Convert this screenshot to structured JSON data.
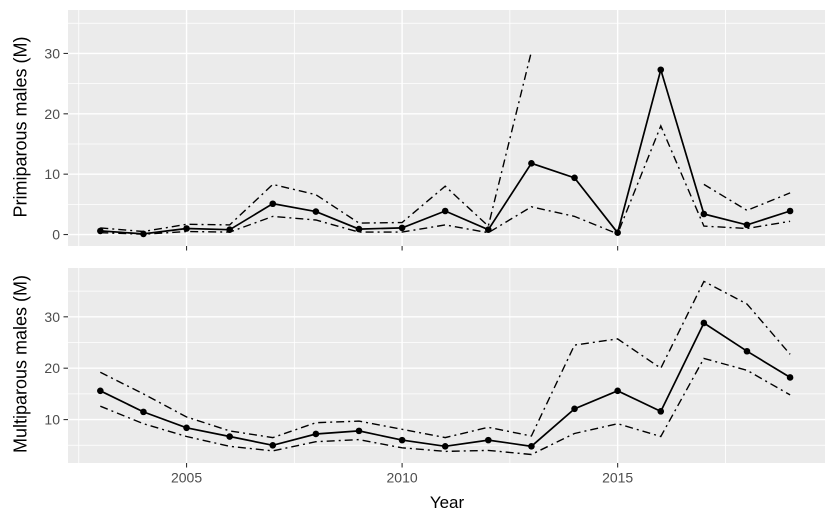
{
  "figure": {
    "xlabel": "Year",
    "colors": {
      "panel_background": "#EBEBEB",
      "grid": "#FFFFFF",
      "line": "#000000",
      "point": "#000000",
      "tick_mark": "#333333",
      "tick_label": "#4D4D4D",
      "axis_title": "#000000"
    }
  },
  "chart_data": [
    {
      "type": "line",
      "panel": "top",
      "title": "",
      "ylabel": "Primiparous males (M)",
      "xlabel": "",
      "x": [
        2003,
        2004,
        2005,
        2006,
        2007,
        2008,
        2009,
        2010,
        2011,
        2012,
        2013,
        2014,
        2015,
        2016,
        2017,
        2018,
        2019
      ],
      "series": [
        {
          "name": "estimate",
          "linetype": "solid",
          "marker": "point",
          "values": [
            0.6,
            0.1,
            1.0,
            0.8,
            5.1,
            3.8,
            0.9,
            1.1,
            3.9,
            0.8,
            11.8,
            9.4,
            0.3,
            27.3,
            3.4,
            1.6,
            3.9
          ]
        },
        {
          "name": "upper_ci",
          "linetype": "dashdot",
          "marker": "none",
          "values": [
            1.1,
            0.5,
            1.7,
            1.6,
            8.3,
            6.6,
            1.9,
            2.0,
            8.0,
            1.4,
            30.3,
            null,
            null,
            null,
            8.3,
            4.0,
            6.9
          ]
        },
        {
          "name": "lower_ci",
          "linetype": "dashdot",
          "marker": "none",
          "values": [
            0.3,
            0.05,
            0.5,
            0.4,
            3.0,
            2.4,
            0.4,
            0.4,
            1.6,
            0.3,
            4.6,
            3.0,
            0.1,
            18.0,
            1.4,
            1.0,
            2.2
          ]
        }
      ],
      "xlim": [
        2002.25,
        2019.81
      ],
      "ylim": [
        -1.9,
        37.2
      ],
      "x_ticks": [
        2005,
        2010,
        2015
      ],
      "x_tick_labels": [],
      "x_minor": [
        2002.5,
        2007.5,
        2012.5,
        2017.5
      ],
      "y_ticks": [
        0,
        10,
        20,
        30
      ],
      "y_tick_labels": [
        "0",
        "10",
        "20",
        "30"
      ],
      "y_minor": [
        5,
        15,
        25,
        35
      ],
      "grid": true,
      "legend": "none"
    },
    {
      "type": "line",
      "panel": "bottom",
      "title": "",
      "ylabel": "Multiparous males (M)",
      "xlabel": "Year",
      "x": [
        2003,
        2004,
        2005,
        2006,
        2007,
        2008,
        2009,
        2010,
        2011,
        2012,
        2013,
        2014,
        2015,
        2016,
        2017,
        2018,
        2019
      ],
      "series": [
        {
          "name": "estimate",
          "linetype": "solid",
          "marker": "point",
          "values": [
            15.6,
            11.5,
            8.4,
            6.7,
            5.0,
            7.2,
            7.8,
            6.0,
            4.8,
            6.0,
            4.8,
            12.1,
            15.6,
            11.6,
            28.8,
            23.3,
            18.2
          ]
        },
        {
          "name": "upper_ci",
          "linetype": "dashdot",
          "marker": "none",
          "values": [
            19.2,
            15.0,
            10.5,
            7.8,
            6.5,
            9.4,
            9.7,
            8.1,
            6.5,
            8.5,
            6.8,
            24.5,
            25.7,
            20.0,
            36.9,
            32.5,
            22.7
          ]
        },
        {
          "name": "lower_ci",
          "linetype": "dashdot",
          "marker": "none",
          "values": [
            12.6,
            9.2,
            6.7,
            4.8,
            3.9,
            5.7,
            6.1,
            4.5,
            3.8,
            4.0,
            3.2,
            7.3,
            9.2,
            6.7,
            21.9,
            19.6,
            14.8
          ]
        }
      ],
      "xlim": [
        2002.25,
        2019.81
      ],
      "ylim": [
        1.55,
        39.5
      ],
      "x_ticks": [
        2005,
        2010,
        2015
      ],
      "x_tick_labels": [
        "2005",
        "2010",
        "2015"
      ],
      "x_minor": [
        2002.5,
        2007.5,
        2012.5,
        2017.5
      ],
      "y_ticks": [
        10,
        20,
        30
      ],
      "y_tick_labels": [
        "10",
        "20",
        "30"
      ],
      "y_minor": [
        5,
        15,
        25,
        35
      ],
      "grid": true,
      "legend": "none"
    }
  ]
}
